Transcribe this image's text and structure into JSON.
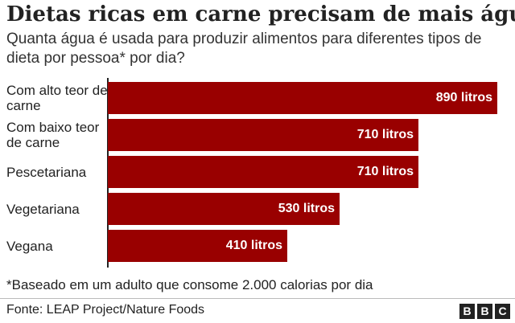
{
  "title": "Dietas ricas em carne precisam de mais água",
  "subtitle": "Quanta água é usada para produzir alimentos para diferentes tipos de dieta por pessoa* por dia?",
  "footnote": "*Baseado em um adulto que consome 2.000 calorias por dia",
  "source": "Fonte: LEAP Project/Nature Foods",
  "logo": [
    "B",
    "B",
    "C"
  ],
  "colors": {
    "bar": "#990000",
    "text": "#222222",
    "label": "#ffffff"
  },
  "chart_data": {
    "type": "bar",
    "orientation": "horizontal",
    "categories": [
      "Com alto teor de carne",
      "Com baixo teor de carne",
      "Pescetariana",
      "Vegetariana",
      "Vegana"
    ],
    "values": [
      890,
      710,
      710,
      530,
      410
    ],
    "data_labels": [
      "890 litros",
      "710 litros",
      "710 litros",
      "530 litros",
      "410 litros"
    ],
    "unit": "litros",
    "xlim": [
      0,
      890
    ],
    "grid": false,
    "legend": "none"
  }
}
